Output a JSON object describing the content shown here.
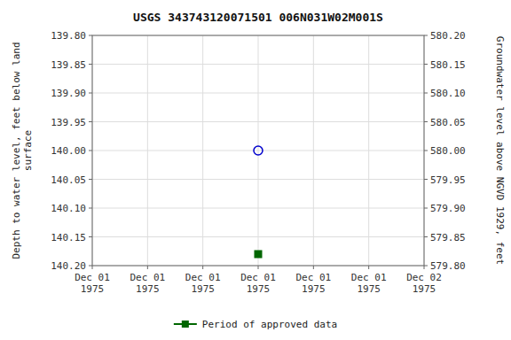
{
  "chart_data": {
    "type": "scatter",
    "title": "USGS 343743120071501 006N031W02M001S",
    "y_label": "Depth to water level, feet below land\nsurface",
    "y2_label": "Groundwater level above NGVD 1929, feet",
    "categories": [
      "Dec 01\n1975",
      "Dec 01\n1975",
      "Dec 01\n1975",
      "Dec 01\n1975",
      "Dec 01\n1975",
      "Dec 01\n1975",
      "Dec 02\n1975"
    ],
    "series": [
      {
        "color": "#0000cc",
        "marker": "open-circle",
        "values": [
          null,
          null,
          null,
          140.0,
          null,
          null,
          null
        ]
      },
      {
        "name": "Period of approved data",
        "color": "#006600",
        "marker": "square",
        "values": [
          null,
          null,
          null,
          140.18,
          null,
          null,
          null
        ]
      }
    ],
    "ylim": [
      140.2,
      139.8
    ],
    "yticks": [
      {
        "value": 139.8,
        "label": "139.80"
      },
      {
        "value": 139.85,
        "label": "139.85"
      },
      {
        "value": 139.9,
        "label": "139.90"
      },
      {
        "value": 139.95,
        "label": "139.95"
      },
      {
        "value": 140.0,
        "label": "140.00"
      },
      {
        "value": 140.05,
        "label": "140.05"
      },
      {
        "value": 140.1,
        "label": "140.10"
      },
      {
        "value": 140.15,
        "label": "140.15"
      },
      {
        "value": 140.2,
        "label": "140.20"
      }
    ],
    "y2lim": [
      579.8,
      580.2
    ],
    "y2ticks": [
      {
        "value": 580.2,
        "label": "580.20"
      },
      {
        "value": 580.15,
        "label": "580.15"
      },
      {
        "value": 580.1,
        "label": "580.10"
      },
      {
        "value": 580.05,
        "label": "580.05"
      },
      {
        "value": 580.0,
        "label": "580.00"
      },
      {
        "value": 579.95,
        "label": "579.95"
      },
      {
        "value": 579.9,
        "label": "579.90"
      },
      {
        "value": 579.85,
        "label": "579.85"
      },
      {
        "value": 579.8,
        "label": "579.80"
      }
    ],
    "grid": true,
    "legend": "bottom"
  }
}
